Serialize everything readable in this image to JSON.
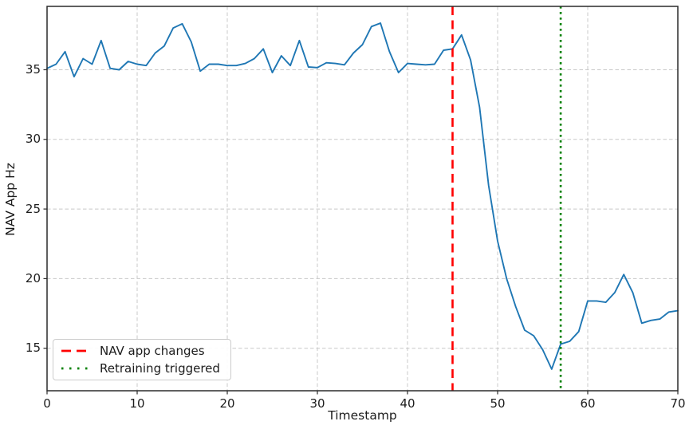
{
  "chart_data": {
    "type": "line",
    "title": "",
    "xlabel": "Timestamp",
    "ylabel": "NAV App Hz",
    "xlim": [
      0,
      70
    ],
    "ylim": [
      11.95,
      39.55
    ],
    "xticks": [
      0,
      10,
      20,
      30,
      40,
      50,
      60,
      70
    ],
    "yticks": [
      15,
      20,
      25,
      30,
      35
    ],
    "grid": true,
    "grid_style": "dashed",
    "legend_position": "lower left",
    "x": [
      0,
      1,
      2,
      3,
      4,
      5,
      6,
      7,
      8,
      9,
      10,
      11,
      12,
      13,
      14,
      15,
      16,
      17,
      18,
      19,
      20,
      21,
      22,
      23,
      24,
      25,
      26,
      27,
      28,
      29,
      30,
      31,
      32,
      33,
      34,
      35,
      36,
      37,
      38,
      39,
      40,
      41,
      42,
      43,
      44,
      45,
      46,
      47,
      48,
      49,
      50,
      51,
      52,
      53,
      54,
      55,
      56,
      57,
      58,
      59,
      60,
      61,
      62,
      63,
      64,
      65,
      66,
      67,
      68,
      69,
      70
    ],
    "series": [
      {
        "name": "NAV App Hz",
        "color": "#1f77b4",
        "values": [
          35.1,
          35.4,
          36.3,
          34.5,
          35.8,
          35.4,
          37.1,
          35.1,
          35.0,
          35.6,
          35.4,
          35.3,
          36.2,
          36.7,
          38.0,
          38.3,
          37.0,
          34.9,
          35.4,
          35.4,
          35.3,
          35.3,
          35.45,
          35.8,
          36.5,
          34.8,
          36.0,
          35.3,
          37.1,
          35.2,
          35.15,
          35.5,
          35.45,
          35.35,
          36.2,
          36.8,
          38.1,
          38.35,
          36.3,
          34.8,
          35.45,
          35.4,
          35.35,
          35.4,
          36.4,
          36.5,
          37.5,
          35.7,
          32.3,
          26.7,
          22.7,
          20.0,
          18.0,
          16.3,
          15.9,
          14.9,
          13.5,
          15.3,
          15.5,
          16.2,
          18.4,
          18.4,
          18.3,
          19.0,
          20.3,
          19.0,
          16.8,
          17.0,
          17.1,
          17.6,
          17.7
        ]
      }
    ],
    "vlines": [
      {
        "x": 45,
        "color": "#ff0000",
        "style": "dashed",
        "label": "NAV app changes"
      },
      {
        "x": 57,
        "color": "#008000",
        "style": "dotted",
        "label": "Retraining triggered"
      }
    ]
  }
}
